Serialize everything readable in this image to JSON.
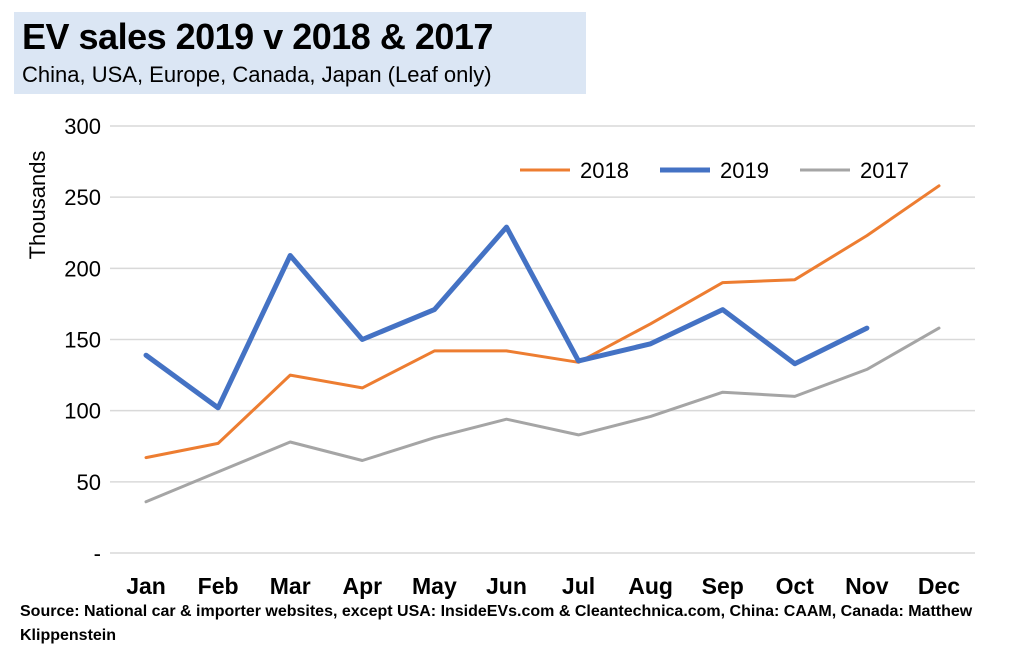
{
  "header": {
    "title": "EV sales 2019 v 2018 & 2017",
    "subtitle": "China, USA, Europe, Canada, Japan (Leaf only)"
  },
  "source_text": "Source: National car & importer websites, except USA: InsideEVs.com & Cleantechnica.com, China: CAAM,  Canada:  Matthew  Klippenstein",
  "chart_data": {
    "type": "line",
    "title": "EV sales 2019 v 2018 & 2017",
    "subtitle": "China, USA, Europe, Canada, Japan (Leaf only)",
    "xlabel": "",
    "ylabel": "Thousands",
    "categories": [
      "Jan",
      "Feb",
      "Mar",
      "Apr",
      "May",
      "Jun",
      "Jul",
      "Aug",
      "Sep",
      "Oct",
      "Nov",
      "Dec"
    ],
    "ylim": [
      0,
      300
    ],
    "yticks": [
      {
        "value": 0,
        "label": "-"
      },
      {
        "value": 50,
        "label": "50"
      },
      {
        "value": 100,
        "label": "100"
      },
      {
        "value": 150,
        "label": "150"
      },
      {
        "value": 200,
        "label": "200"
      },
      {
        "value": 250,
        "label": "250"
      },
      {
        "value": 300,
        "label": "300"
      }
    ],
    "grid": true,
    "legend": "top-right",
    "series": [
      {
        "name": "2018",
        "color": "#ed7d31",
        "width": 3,
        "values": [
          67,
          77,
          125,
          116,
          142,
          142,
          134,
          161,
          190,
          192,
          223,
          258
        ]
      },
      {
        "name": "2019",
        "color": "#4472c4",
        "width": 5,
        "values": [
          139,
          102,
          209,
          150,
          171,
          229,
          135,
          147,
          171,
          133,
          158,
          null
        ]
      },
      {
        "name": "2017",
        "color": "#a5a5a5",
        "width": 3,
        "values": [
          36,
          57,
          78,
          65,
          81,
          94,
          83,
          96,
          113,
          110,
          129,
          158
        ]
      }
    ]
  }
}
